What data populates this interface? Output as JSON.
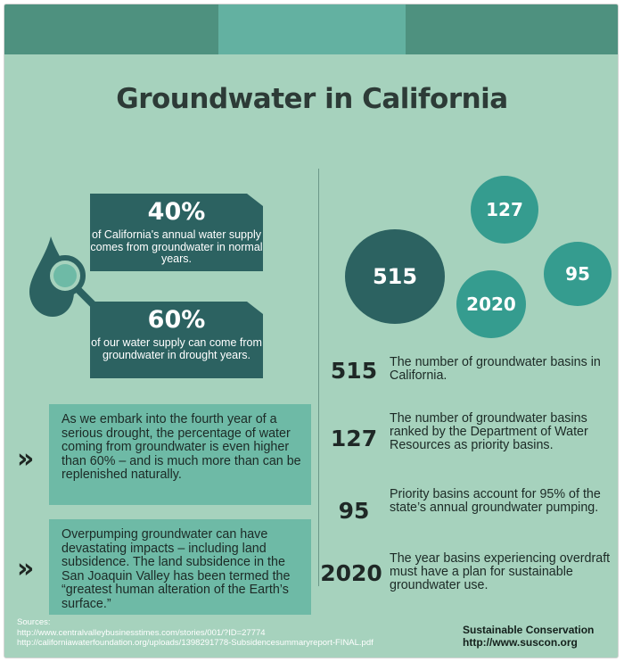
{
  "title": "Groundwater in California",
  "stats": [
    {
      "value": "40%",
      "text": "of California's annual water supply comes from groundwater in normal years."
    },
    {
      "value": "60%",
      "text": "of our water supply can come from groundwater in drought years."
    }
  ],
  "callouts": [
    {
      "text": "As we embark into the fourth year of a serious drought, the percentage of water coming from groundwater is even higher than 60% – and is much more than can be replenished naturally."
    },
    {
      "text": "Overpumping groundwater can have devastating impacts – including land subsidence. The land subsidence in the San Joaquin Valley has been termed the “greatest human alteration of the Earth’s surface.”"
    }
  ],
  "chevron_glyph": "»",
  "circles": {
    "c515": "515",
    "c127": "127",
    "c95": "95",
    "c2020": "2020"
  },
  "facts": [
    {
      "number": "515",
      "text": "The number of groundwater basins in California."
    },
    {
      "number": "127",
      "text": "The number of groundwater basins ranked by the Department of Water Resources as priority basins."
    },
    {
      "number": "95",
      "text": "Priority basins account for 95% of the state’s annual groundwater pumping."
    },
    {
      "number": "2020",
      "text": "The year basins experiencing overdraft must have a plan for sustainable groundwater use."
    }
  ],
  "sources": {
    "label": "Sources:",
    "links": [
      "http://www.centralvalleybusinesstimes.com/stories/001/?ID=27774",
      "http://californiawaterfoundation.org/uploads/1398291778-Subsidencesummaryreport-FINAL.pdf"
    ]
  },
  "organization": {
    "name": "Sustainable Conservation",
    "url": "http://www.suscon.org"
  },
  "colors": {
    "background": "#a6d2bd",
    "dark_teal": "#2c6261",
    "teal": "#359c8f",
    "light_box": "#6ebaa6",
    "header_band": "#4e917f",
    "header_band_mid": "#63b1a1"
  },
  "icons": [
    "water-drop-magnifier-icon",
    "double-chevron-icon"
  ]
}
